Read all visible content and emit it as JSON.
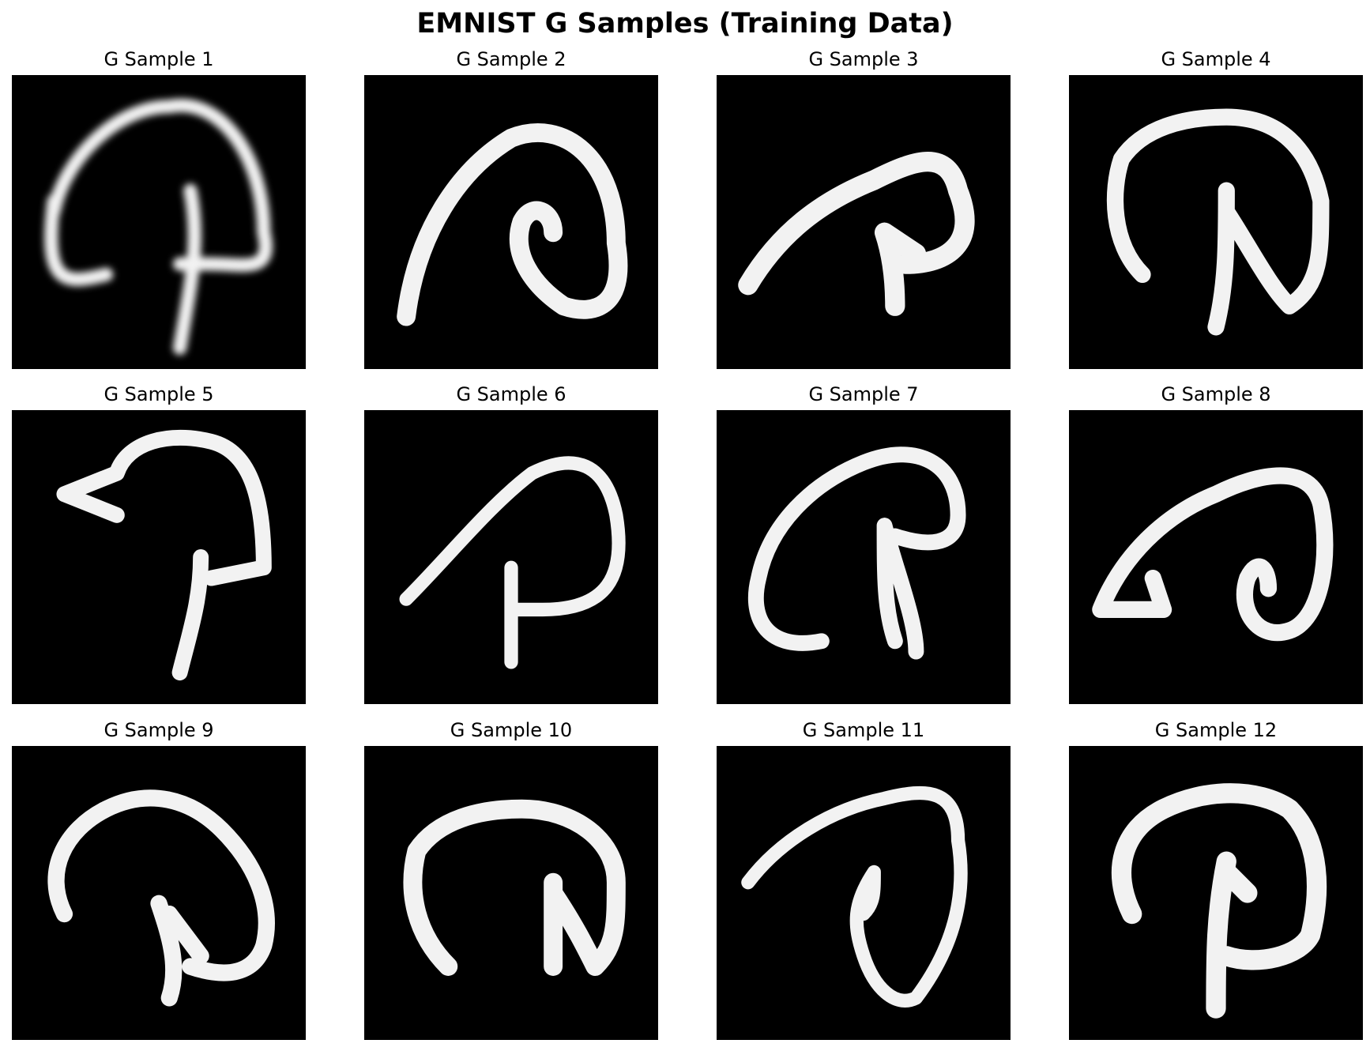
{
  "figure": {
    "title": "EMNIST G Samples (Training Data)"
  },
  "colors": {
    "background": "#000000",
    "stroke": "#f2f2f2"
  },
  "samples": [
    {
      "title": "G Sample 1"
    },
    {
      "title": "G Sample 2"
    },
    {
      "title": "G Sample 3"
    },
    {
      "title": "G Sample 4"
    },
    {
      "title": "G Sample 5"
    },
    {
      "title": "G Sample 6"
    },
    {
      "title": "G Sample 7"
    },
    {
      "title": "G Sample 8"
    },
    {
      "title": "G Sample 9"
    },
    {
      "title": "G Sample 10"
    },
    {
      "title": "G Sample 11"
    },
    {
      "title": "G Sample 12"
    }
  ]
}
